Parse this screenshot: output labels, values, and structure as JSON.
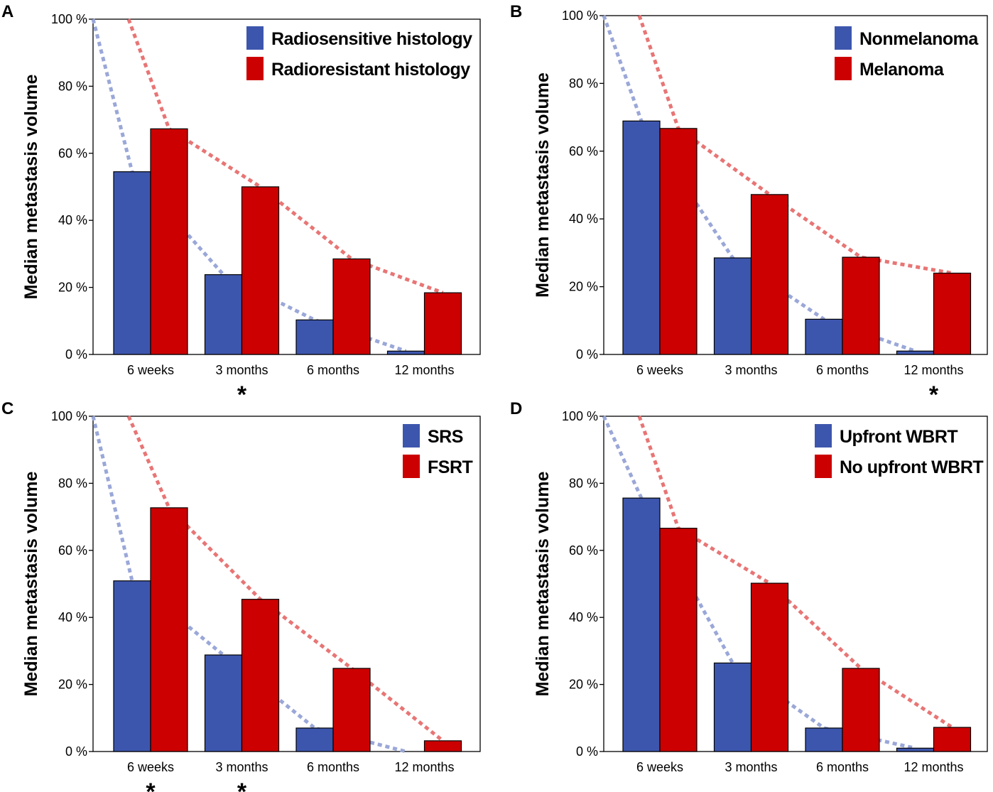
{
  "colors": {
    "series1": "#3d56ad",
    "series2": "#cc0000",
    "trend1": "#9aa7d8",
    "trend2": "#e87575",
    "axis": "#000000"
  },
  "chart_data": [
    {
      "panel": "A",
      "type": "bar",
      "ylabel": "Median metastasis volume",
      "ylim": [
        0,
        100
      ],
      "yticks": [
        "0 %",
        "20 %",
        "40 %",
        "60 %",
        "80 %",
        "100 %"
      ],
      "ytick_values": [
        0,
        20,
        40,
        60,
        80,
        100
      ],
      "categories": [
        "6 weeks",
        "3 months",
        "6 months",
        "12 months"
      ],
      "series": [
        {
          "name": "Radiosensitive histology",
          "values": [
            54.5,
            23.8,
            10.3,
            1.0
          ]
        },
        {
          "name": "Radioresistant histology",
          "values": [
            67.3,
            50.0,
            28.5,
            18.4
          ]
        }
      ],
      "trend_start": [
        100,
        100
      ],
      "significance": [
        "",
        "*",
        "",
        ""
      ],
      "legend_position": "top-right"
    },
    {
      "panel": "B",
      "type": "bar",
      "ylabel": "Median metastasis volume",
      "ylim": [
        0,
        100
      ],
      "yticks": [
        "0 %",
        "20 %",
        "40 %",
        "60 %",
        "80 %",
        "100 %"
      ],
      "ytick_values": [
        0,
        20,
        40,
        60,
        80,
        100
      ],
      "categories": [
        "6 weeks",
        "3 months",
        "6 months",
        "12 months"
      ],
      "series": [
        {
          "name": "Nonmelanoma",
          "values": [
            68.9,
            28.5,
            10.4,
            1.0
          ]
        },
        {
          "name": "Melanoma",
          "values": [
            66.7,
            47.2,
            28.7,
            24.0
          ]
        }
      ],
      "trend_start": [
        100,
        100
      ],
      "significance": [
        "",
        "",
        "",
        "*"
      ],
      "legend_position": "top-right"
    },
    {
      "panel": "C",
      "type": "bar",
      "ylabel": "Median metastasis volume",
      "ylim": [
        0,
        100
      ],
      "yticks": [
        "0 %",
        "20 %",
        "40 %",
        "60 %",
        "80 %",
        "100 %"
      ],
      "ytick_values": [
        0,
        20,
        40,
        60,
        80,
        100
      ],
      "categories": [
        "6 weeks",
        "3 months",
        "6 months",
        "12 months"
      ],
      "series": [
        {
          "name": "SRS",
          "values": [
            50.9,
            28.8,
            7.0,
            0.0
          ]
        },
        {
          "name": "FSRT",
          "values": [
            72.7,
            45.4,
            24.8,
            3.2
          ]
        }
      ],
      "trend_start": [
        100,
        100
      ],
      "significance": [
        "*",
        "*",
        "",
        ""
      ],
      "legend_position": "top-right"
    },
    {
      "panel": "D",
      "type": "bar",
      "ylabel": "Median metastasis volume",
      "ylim": [
        0,
        100
      ],
      "yticks": [
        "0 %",
        "20 %",
        "40 %",
        "60 %",
        "80 %",
        "100 %"
      ],
      "ytick_values": [
        0,
        20,
        40,
        60,
        80,
        100
      ],
      "categories": [
        "6 weeks",
        "3 months",
        "6 months",
        "12 months"
      ],
      "series": [
        {
          "name": "Upfront WBRT",
          "values": [
            75.6,
            26.4,
            7.0,
            1.0
          ]
        },
        {
          "name": "No upfront WBRT",
          "values": [
            66.6,
            50.2,
            24.8,
            7.2
          ]
        }
      ],
      "trend_start": [
        100,
        100
      ],
      "significance": [
        "",
        "",
        "",
        ""
      ],
      "legend_position": "top-right"
    }
  ]
}
